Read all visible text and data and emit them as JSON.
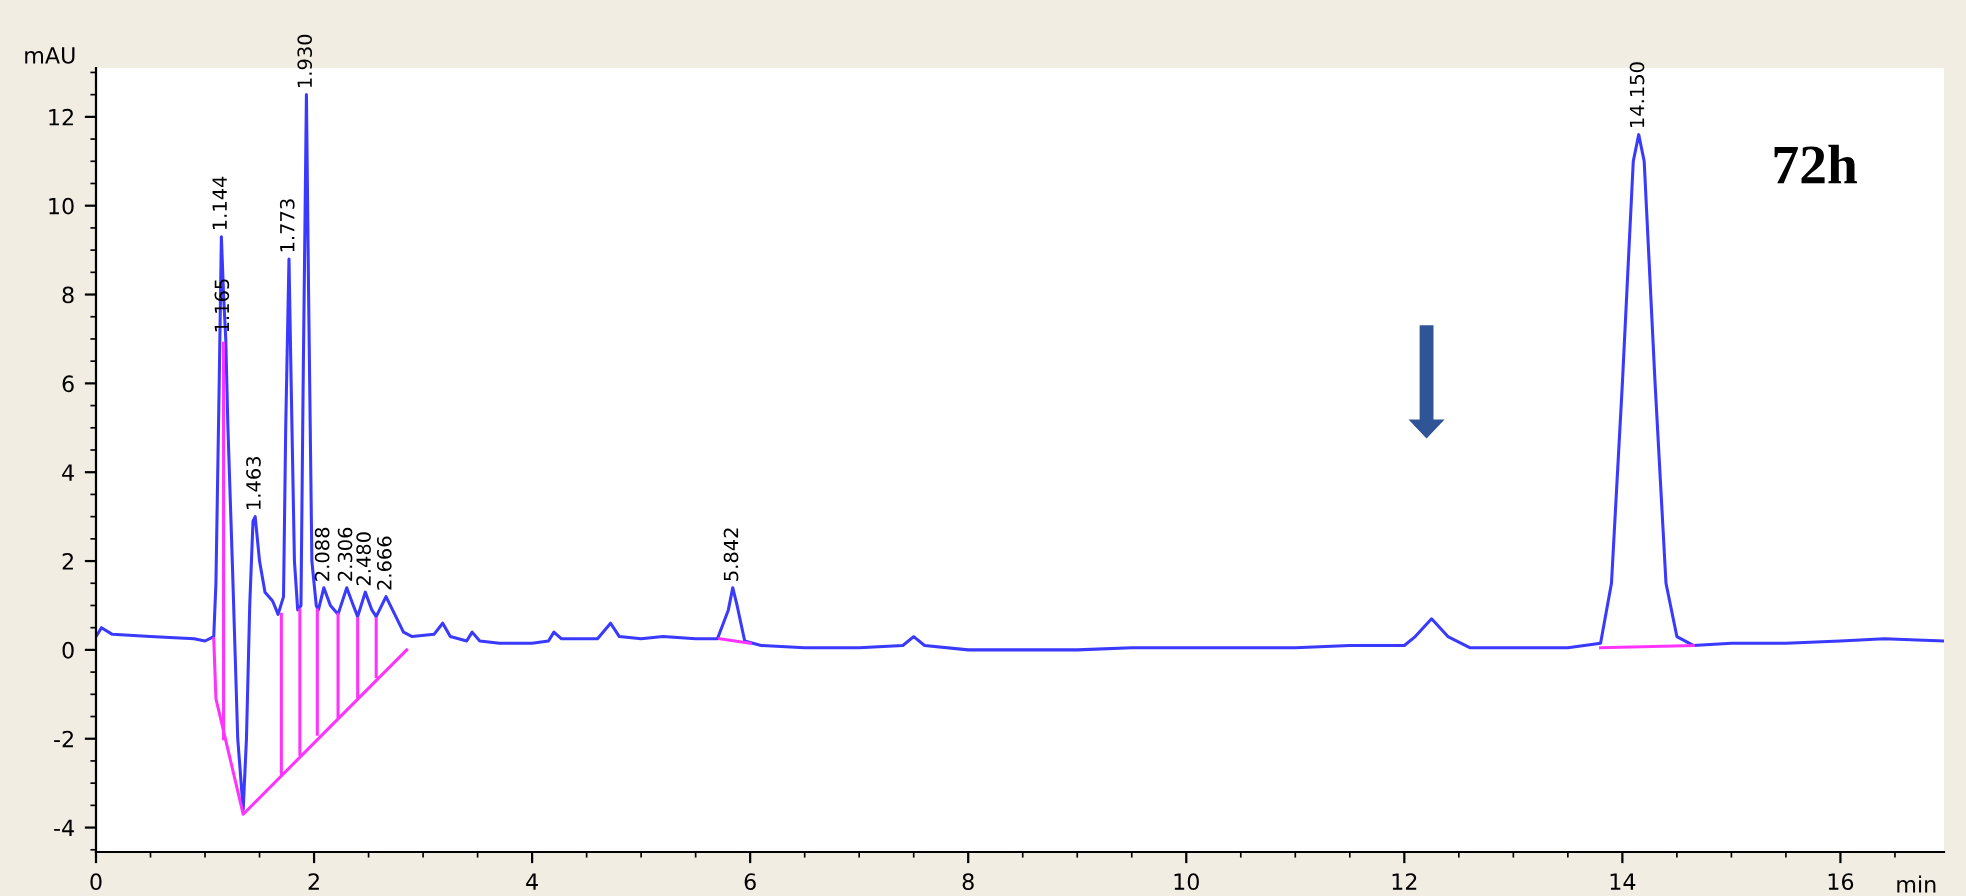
{
  "chart_data": {
    "type": "line",
    "xlabel": "min",
    "ylabel": "mAU",
    "xlim": [
      0,
      16.95
    ],
    "ylim": [
      -4.55,
      13.1
    ],
    "xticks": [
      0,
      2,
      4,
      6,
      8,
      10,
      12,
      14,
      16
    ],
    "yticks": [
      -4,
      -2,
      0,
      2,
      4,
      6,
      8,
      10,
      12
    ],
    "grid": false,
    "legend": false,
    "marker": "none",
    "line_style": "solid",
    "series": [
      {
        "color": "#3a3aff",
        "x": [
          0,
          0.05,
          0.15,
          0.5,
          0.9,
          1.0,
          1.08,
          1.1,
          1.13,
          1.15,
          1.17,
          1.19,
          1.21,
          1.25,
          1.3,
          1.35,
          1.38,
          1.41,
          1.44,
          1.46,
          1.5,
          1.55,
          1.62,
          1.67,
          1.72,
          1.74,
          1.77,
          1.79,
          1.82,
          1.85,
          1.88,
          1.9,
          1.93,
          1.95,
          1.98,
          2.02,
          2.04,
          2.09,
          2.15,
          2.22,
          2.3,
          2.36,
          2.4,
          2.47,
          2.53,
          2.57,
          2.66,
          2.72,
          2.82,
          2.9,
          3.1,
          3.18,
          3.25,
          3.4,
          3.45,
          3.52,
          3.7,
          4.0,
          4.15,
          4.2,
          4.27,
          4.6,
          4.72,
          4.8,
          5.0,
          5.2,
          5.5,
          5.7,
          5.8,
          5.84,
          5.88,
          5.95,
          6.1,
          6.5,
          7.0,
          7.4,
          7.5,
          7.6,
          8.0,
          8.5,
          9.0,
          9.5,
          10.0,
          10.5,
          11.0,
          11.5,
          12.0,
          12.1,
          12.25,
          12.4,
          12.6,
          13.0,
          13.5,
          13.8,
          13.9,
          14.0,
          14.1,
          14.15,
          14.2,
          14.3,
          14.4,
          14.5,
          14.65,
          15.0,
          15.5,
          16.0,
          16.4,
          16.95
        ],
        "values": [
          0.3,
          0.5,
          0.35,
          0.3,
          0.25,
          0.2,
          0.3,
          1.5,
          6,
          9.3,
          8.0,
          7.0,
          5,
          2,
          -2,
          -3.6,
          -2,
          1,
          2.9,
          3.0,
          2,
          1.3,
          1.1,
          0.8,
          1.2,
          5,
          8.8,
          6,
          2,
          0.9,
          1.0,
          6,
          12.5,
          8,
          2,
          1.0,
          0.9,
          1.4,
          1.0,
          0.8,
          1.4,
          1.0,
          0.75,
          1.3,
          0.9,
          0.75,
          1.2,
          0.9,
          0.4,
          0.3,
          0.35,
          0.6,
          0.3,
          0.2,
          0.4,
          0.2,
          0.15,
          0.15,
          0.2,
          0.4,
          0.25,
          0.25,
          0.6,
          0.3,
          0.25,
          0.3,
          0.25,
          0.25,
          0.9,
          1.4,
          1.0,
          0.2,
          0.1,
          0.05,
          0.05,
          0.1,
          0.3,
          0.1,
          0.0,
          0.0,
          0.0,
          0.05,
          0.05,
          0.05,
          0.05,
          0.1,
          0.1,
          0.3,
          0.7,
          0.3,
          0.05,
          0.05,
          0.05,
          0.15,
          1.5,
          6,
          11,
          11.6,
          11,
          6,
          1.5,
          0.3,
          0.1,
          0.15,
          0.15,
          0.2,
          0.25,
          0.2
        ]
      },
      {
        "color": "#ff33ff",
        "x": [
          1.08,
          1.1,
          1.35,
          2.85,
          null,
          1.17,
          1.17,
          null,
          1.7,
          1.7,
          null,
          1.87,
          1.87,
          null,
          2.03,
          2.03,
          null,
          2.22,
          2.22,
          null,
          2.4,
          2.4,
          null,
          2.57,
          2.57,
          null,
          5.72,
          6.0,
          null,
          13.8,
          14.65
        ],
        "values": [
          0.25,
          -1.1,
          -3.7,
          0.0,
          null,
          -2.0,
          6.9,
          null,
          -2.8,
          0.8,
          null,
          -2.35,
          0.9,
          null,
          -1.9,
          0.9,
          null,
          -1.5,
          0.8,
          null,
          -1.1,
          0.7,
          null,
          -0.6,
          0.7,
          null,
          0.25,
          0.15,
          null,
          0.05,
          0.1
        ]
      }
    ],
    "annotations": [
      {
        "text": "1.144",
        "x": 1.15,
        "y": 9.3
      },
      {
        "text": "1.165",
        "x": 1.17,
        "y": 7.0
      },
      {
        "text": "1.463",
        "x": 1.46,
        "y": 3.0
      },
      {
        "text": "1.773",
        "x": 1.77,
        "y": 8.8
      },
      {
        "text": "1.930",
        "x": 1.93,
        "y": 12.5
      },
      {
        "text": "2.088",
        "x": 2.09,
        "y": 1.4
      },
      {
        "text": "2.306",
        "x": 2.3,
        "y": 1.4
      },
      {
        "text": "2.480",
        "x": 2.47,
        "y": 1.3
      },
      {
        "text": "2.666",
        "x": 2.66,
        "y": 1.2
      },
      {
        "text": "5.842",
        "x": 5.84,
        "y": 1.4
      },
      {
        "text": "14.150",
        "x": 14.15,
        "y": 11.6
      },
      "72h"
    ]
  }
}
